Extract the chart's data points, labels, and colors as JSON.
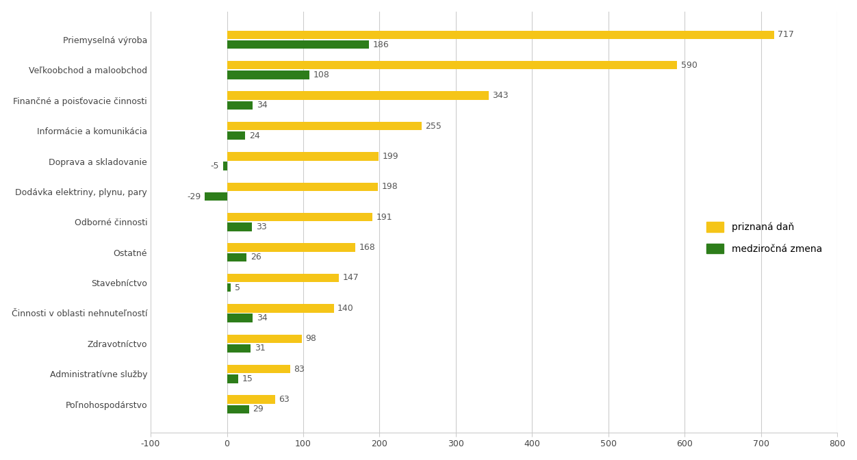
{
  "categories": [
    "Priemyselná výroba",
    "Veľkoobchod a maloobchod",
    "Finančné a poisťovacie činnosti",
    "Informácie a komunikácia",
    "Doprava a skladovanie",
    "Dodávka elektriny, plynu, pary",
    "Odborné činnosti",
    "Ostatné",
    "Stavebníctvo",
    "Činnosti v oblasti nehnuteľností",
    "Zdravotníctvo",
    "Administratívne služby",
    "Poľnohospodárstvo"
  ],
  "prizna_dan": [
    717,
    590,
    343,
    255,
    199,
    198,
    191,
    168,
    147,
    140,
    98,
    83,
    63
  ],
  "medzirocna_zmena": [
    186,
    108,
    34,
    24,
    -5,
    -29,
    33,
    26,
    5,
    34,
    31,
    15,
    29
  ],
  "color_prizna": "#F5C518",
  "color_zmena": "#2D7D1A",
  "background_color": "#FFFFFF",
  "grid_color": "#CCCCCC",
  "xlim": [
    -100,
    800
  ],
  "xticks": [
    -100,
    0,
    100,
    200,
    300,
    400,
    500,
    600,
    700,
    800
  ],
  "legend_prizna": "priznaná daň",
  "legend_zmena": "medziročná zmena",
  "bar_height": 0.28,
  "bar_gap": 0.04,
  "label_fontsize": 9,
  "tick_fontsize": 9,
  "legend_fontsize": 10
}
